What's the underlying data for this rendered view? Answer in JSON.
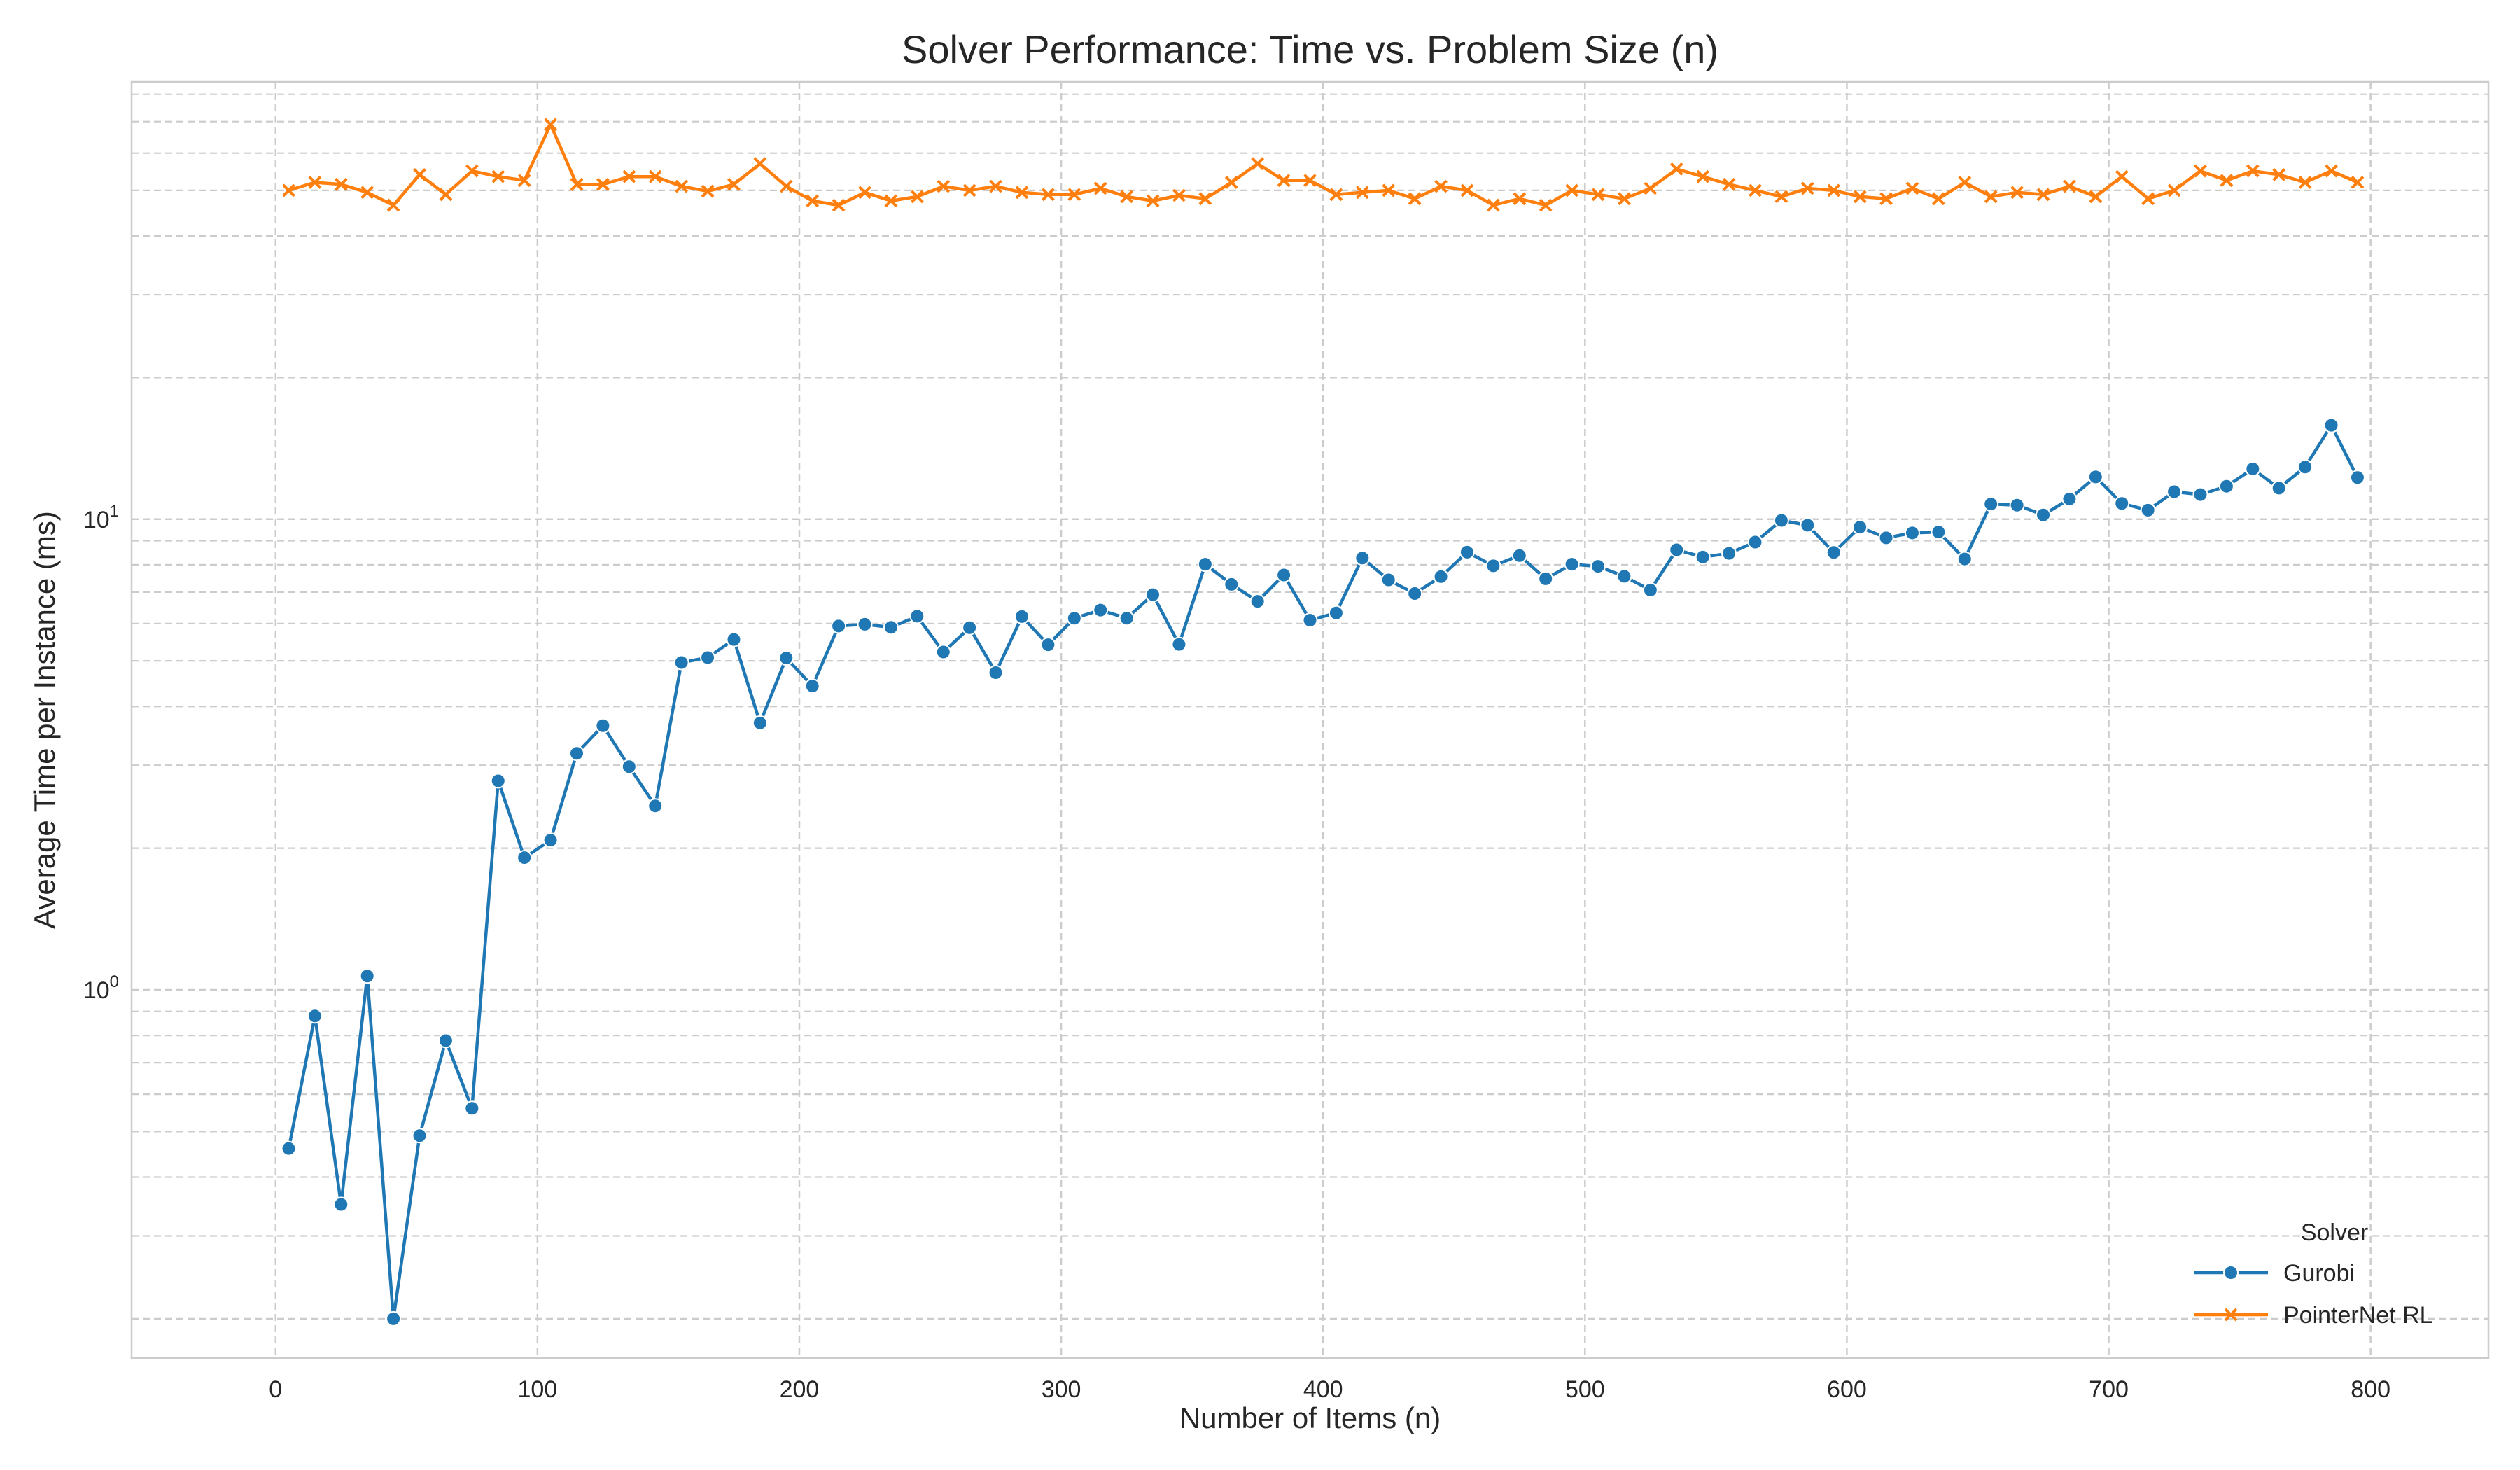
{
  "chart_data": {
    "type": "line",
    "title": "Solver Performance: Time vs. Problem Size (n)",
    "xlabel": "Number of Items (n)",
    "ylabel": "Average Time per Instance (ms)",
    "xlim": [
      -55,
      845
    ],
    "ylim": [
      0.165,
      85
    ],
    "yscale": "log",
    "grid": true,
    "x_ticks": [
      0,
      100,
      200,
      300,
      400,
      500,
      600,
      700,
      800
    ],
    "y_ticks": [
      {
        "value": 1,
        "label": "10^0"
      },
      {
        "value": 10,
        "label": "10^1"
      }
    ],
    "legend": {
      "title": "Solver",
      "placement": "lower-right"
    },
    "x": [
      5,
      15,
      25,
      35,
      45,
      55,
      65,
      75,
      85,
      95,
      105,
      115,
      125,
      135,
      145,
      155,
      165,
      175,
      185,
      195,
      205,
      215,
      225,
      235,
      245,
      255,
      265,
      275,
      285,
      295,
      305,
      315,
      325,
      335,
      345,
      355,
      365,
      375,
      385,
      395,
      405,
      415,
      425,
      435,
      445,
      455,
      465,
      475,
      485,
      495,
      505,
      515,
      525,
      535,
      545,
      555,
      565,
      575,
      585,
      595,
      605,
      615,
      625,
      635,
      645,
      655,
      665,
      675,
      685,
      695,
      705,
      715,
      725,
      735,
      745,
      755,
      765,
      775,
      785,
      795
    ],
    "series": [
      {
        "name": "Gurobi",
        "color": "#1f77b4",
        "marker": "circle",
        "values": [
          0.46,
          0.88,
          0.35,
          1.07,
          0.2,
          0.49,
          0.78,
          0.56,
          2.78,
          1.91,
          2.08,
          3.18,
          3.64,
          2.98,
          2.46,
          4.96,
          5.08,
          5.55,
          3.69,
          5.07,
          4.42,
          5.93,
          5.98,
          5.89,
          6.22,
          5.22,
          5.88,
          4.72,
          6.21,
          5.41,
          6.16,
          6.41,
          6.16,
          6.91,
          5.42,
          8.02,
          7.27,
          6.69,
          7.61,
          6.1,
          6.32,
          8.27,
          7.43,
          6.95,
          7.55,
          8.51,
          7.96,
          8.37,
          7.47,
          8.02,
          7.94,
          7.56,
          7.07,
          8.61,
          8.31,
          8.46,
          8.94,
          9.94,
          9.71,
          8.5,
          9.62,
          9.13,
          9.35,
          9.39,
          8.23,
          10.77,
          10.71,
          10.21,
          11.04,
          12.3,
          10.8,
          10.45,
          11.44,
          11.28,
          11.75,
          12.79,
          11.64,
          12.91,
          15.83,
          12.26
        ]
      },
      {
        "name": "PointerNet RL",
        "color": "#ff7f0e",
        "marker": "x",
        "values": [
          50.0,
          52.0,
          51.5,
          49.5,
          46.5,
          54.0,
          49.0,
          55.0,
          53.5,
          52.5,
          69.0,
          51.5,
          51.5,
          53.5,
          53.5,
          51.0,
          49.8,
          51.5,
          57.0,
          51.0,
          47.5,
          46.5,
          49.5,
          47.5,
          48.5,
          51.0,
          50.0,
          51.0,
          49.5,
          49.0,
          49.0,
          50.5,
          48.5,
          47.5,
          48.8,
          48.0,
          52.0,
          57.0,
          52.5,
          52.5,
          49.0,
          49.5,
          50.0,
          48.0,
          51.0,
          50.0,
          46.5,
          48.0,
          46.5,
          50.0,
          49.0,
          48.0,
          50.5,
          55.5,
          53.5,
          51.5,
          50.0,
          48.5,
          50.5,
          50.0,
          48.5,
          48.0,
          50.5,
          48.0,
          52.0,
          48.5,
          49.5,
          49.0,
          51.0,
          48.5,
          53.5,
          48.0,
          50.0,
          55.0,
          52.5,
          55.0,
          54.0,
          52.0,
          55.0,
          52.0
        ]
      }
    ]
  }
}
